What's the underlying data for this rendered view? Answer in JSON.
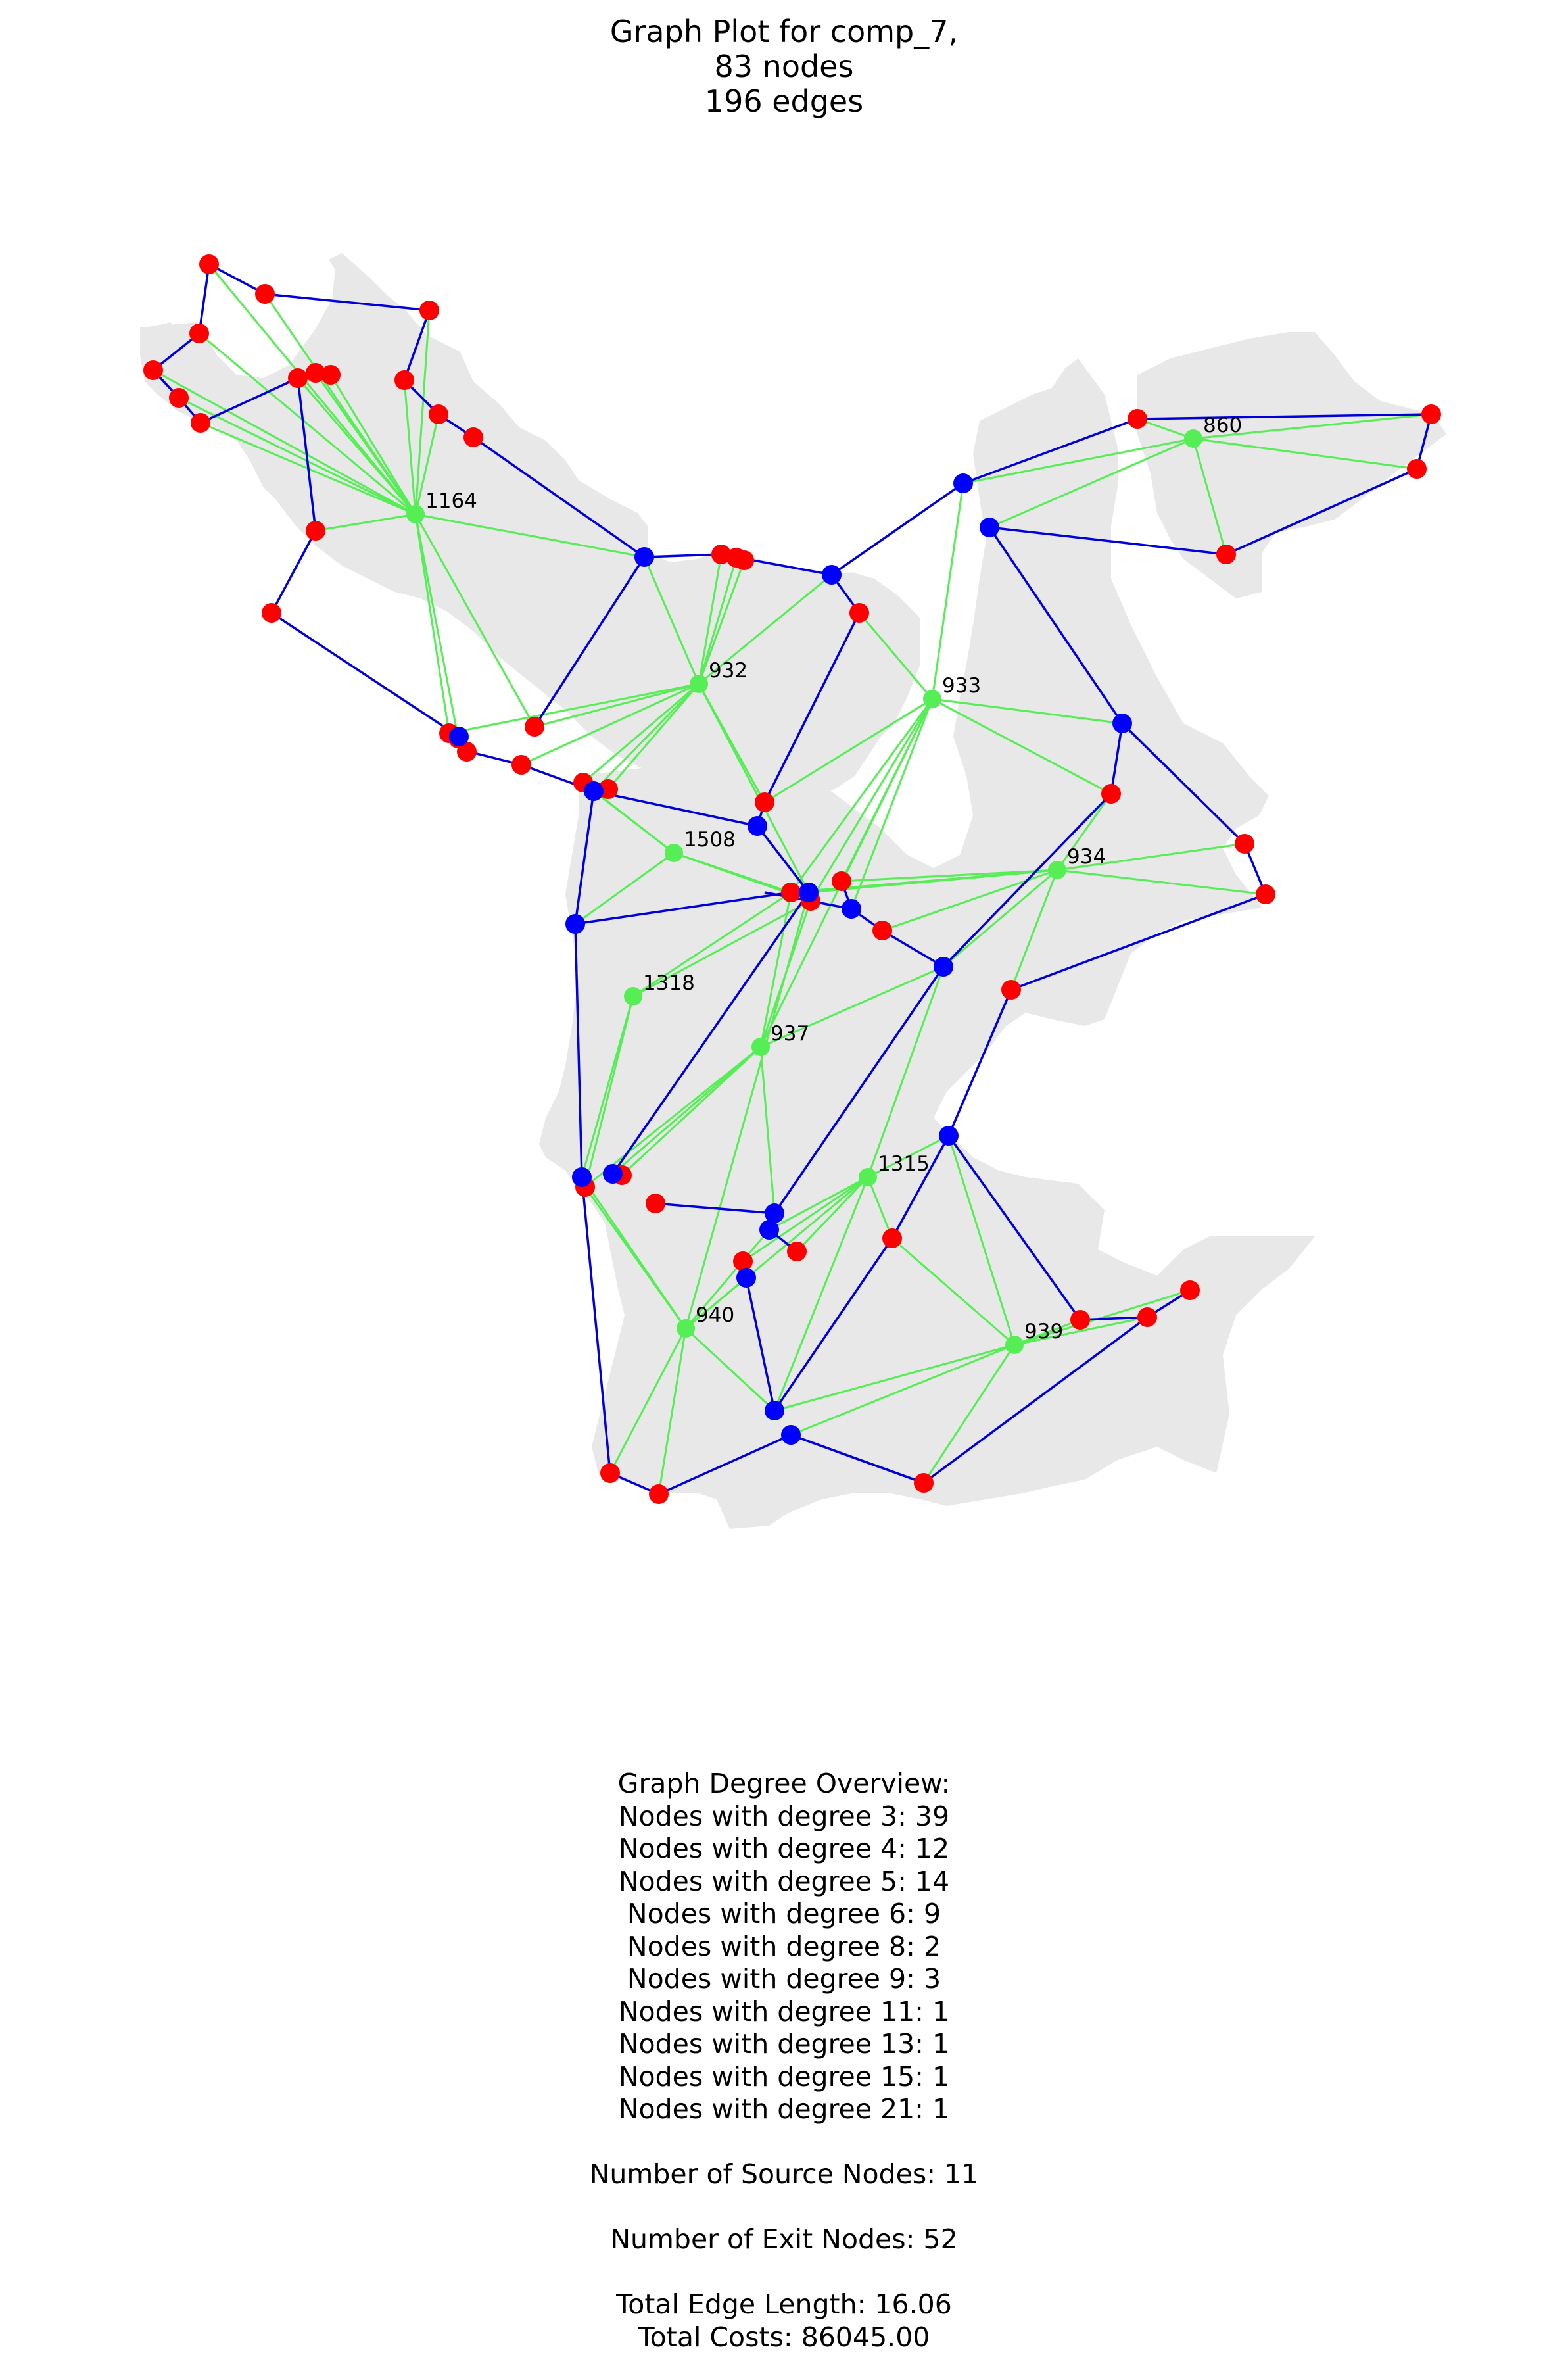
{
  "title_lines": [
    "Graph Plot for comp_7,",
    "83 nodes",
    "196 edges"
  ],
  "colors": {
    "region": "#e8e8e8",
    "source_node": "#0000ff",
    "exit_node": "#ff0000",
    "hub_node": "#55ee55",
    "tree_edge": "#0000dd",
    "hub_edge": "#55ee55"
  },
  "hub_labels": {
    "h860": "860",
    "h1164": "1164",
    "h932": "932",
    "h933": "933",
    "h1508": "1508",
    "h934": "934",
    "h1318": "1318",
    "h937": "937",
    "h1315": "1315",
    "h940": "940",
    "h939": "939"
  },
  "stats": {
    "heading": "Graph Degree Overview:",
    "degree_lines": [
      "Nodes with degree 3: 39",
      "Nodes with degree 4: 12",
      "Nodes with degree 5: 14",
      "Nodes with degree 6: 9",
      "Nodes with degree 8: 2",
      "Nodes with degree 9: 3",
      "Nodes with degree 11: 1",
      "Nodes with degree 13: 1",
      "Nodes with degree 15: 1",
      "Nodes with degree 21: 1"
    ],
    "sources": "Number of Source Nodes: 11",
    "exits": "Number of Exit Nodes: 52",
    "edge_length": "Total Edge Length: 16.06",
    "costs": "Total Costs: 86045.00"
  }
}
